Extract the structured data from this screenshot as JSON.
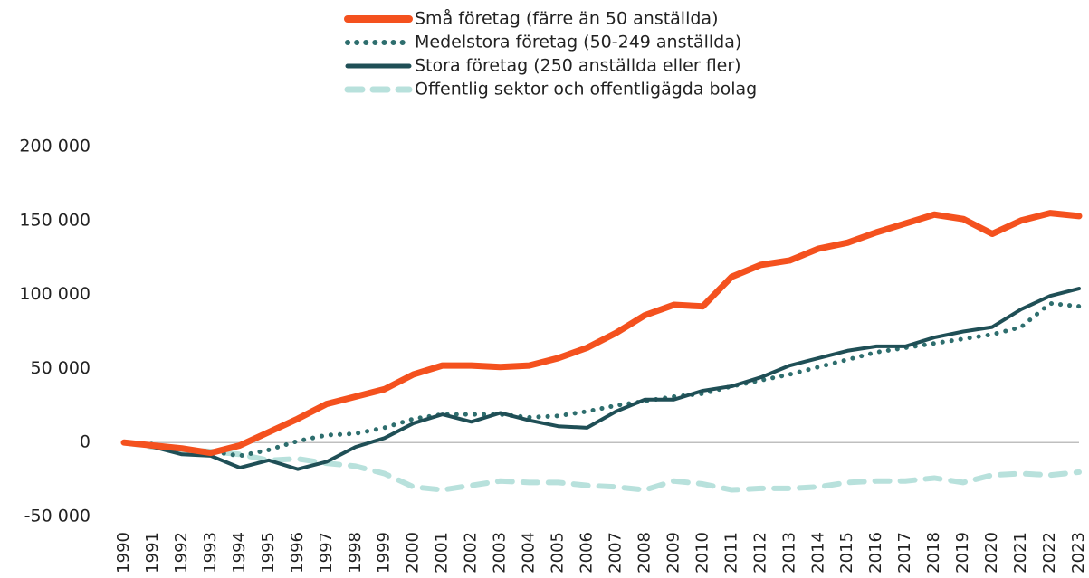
{
  "chart_data": {
    "type": "line",
    "legend": "top",
    "categories": [
      "1990",
      "1991",
      "1992",
      "1993",
      "1994",
      "1995",
      "1996",
      "1997",
      "1998",
      "1999",
      "2000",
      "2001",
      "2002",
      "2003",
      "2004",
      "2005",
      "2006",
      "2007",
      "2008",
      "2009",
      "2010",
      "2011",
      "2012",
      "2013",
      "2014",
      "2015",
      "2016",
      "2017",
      "2018",
      "2019",
      "2020",
      "2021",
      "2022",
      "2023"
    ],
    "ylim": [
      -50000,
      200000
    ],
    "yticks": [
      {
        "value": -50000,
        "label": "-50 000"
      },
      0,
      {
        "value": 50000,
        "label": "50 000"
      },
      {
        "value": 100000,
        "label": "100 000"
      },
      {
        "value": 150000,
        "label": "150 000"
      },
      {
        "value": 200000,
        "label": "200 000"
      }
    ],
    "series": [
      {
        "name": "Små företag (färre än 50 anställda)",
        "color": "#f4511e",
        "style": "solid",
        "values": [
          0,
          -2000,
          -4000,
          -7000,
          -2000,
          7000,
          16000,
          26000,
          31000,
          36000,
          46000,
          52000,
          52000,
          51000,
          52000,
          57000,
          64000,
          74000,
          86000,
          93000,
          92000,
          112000,
          120000,
          123000,
          131000,
          135000,
          142000,
          148000,
          154000,
          151000,
          141000,
          150000,
          155000,
          153000
        ]
      },
      {
        "name": "Medelstora företag (50-249 anställda)",
        "color": "#2e6e6e",
        "style": "dotted",
        "values": [
          0,
          -1000,
          -5000,
          -6000,
          -9000,
          -5000,
          1000,
          5000,
          6000,
          10000,
          16000,
          19000,
          19000,
          19000,
          17000,
          18000,
          21000,
          25000,
          28000,
          31000,
          33000,
          38000,
          42000,
          46000,
          51000,
          56000,
          61000,
          64000,
          67000,
          70000,
          73000,
          78000,
          94000,
          92000
        ]
      },
      {
        "name": "Stora företag (250 anställda eller fler)",
        "color": "#1f4f56",
        "style": "solid",
        "values": [
          0,
          -3000,
          -8000,
          -9000,
          -17000,
          -12000,
          -18000,
          -13000,
          -3000,
          3000,
          13000,
          19000,
          14000,
          20000,
          15000,
          11000,
          10000,
          21000,
          29000,
          29000,
          35000,
          38000,
          44000,
          52000,
          57000,
          62000,
          65000,
          65000,
          71000,
          75000,
          78000,
          90000,
          99000,
          104000
        ]
      },
      {
        "name": "Offentlig sektor och offentligägda bolag",
        "color": "#b8e1dc",
        "style": "dashed",
        "values": [
          0,
          -3000,
          -5000,
          -6000,
          -8000,
          -12000,
          -11000,
          -14000,
          -16000,
          -21000,
          -30000,
          -32000,
          -29000,
          -26000,
          -27000,
          -27000,
          -29000,
          -30000,
          -32000,
          -26000,
          -28000,
          -32000,
          -31000,
          -31000,
          -30000,
          -27000,
          -26000,
          -26000,
          -24000,
          -27000,
          -22000,
          -21000,
          -22000,
          -20000
        ]
      }
    ]
  }
}
